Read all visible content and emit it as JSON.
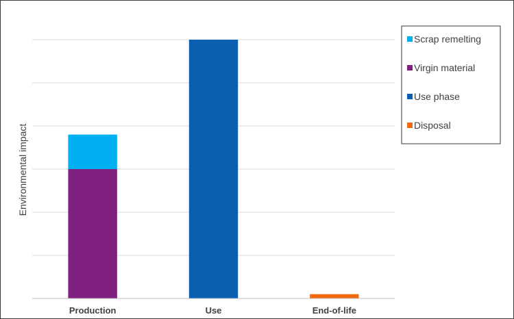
{
  "chart_data": {
    "type": "bar",
    "stacked": true,
    "categories": [
      "Production",
      "Use",
      "End-of-life"
    ],
    "series": [
      {
        "name": "Scrap remelting",
        "color": "#00b0f0",
        "values": [
          0.8,
          0,
          0
        ]
      },
      {
        "name": "Virgin material",
        "color": "#7f1f7f",
        "values": [
          3.0,
          0,
          0
        ]
      },
      {
        "name": "Use phase",
        "color": "#0a5fb0",
        "values": [
          0,
          6.0,
          0
        ]
      },
      {
        "name": "Disposal",
        "color": "#f26a0f",
        "values": [
          0,
          0,
          0.1
        ]
      }
    ],
    "stack_order": [
      "Virgin material",
      "Scrap remelting",
      "Use phase",
      "Disposal"
    ],
    "ylabel": "Environmental  impact",
    "xlabel": "",
    "title": "",
    "ylim": [
      0,
      6
    ],
    "grid": true,
    "legend_position": "top-right",
    "y_tick_labels_shown": false
  }
}
